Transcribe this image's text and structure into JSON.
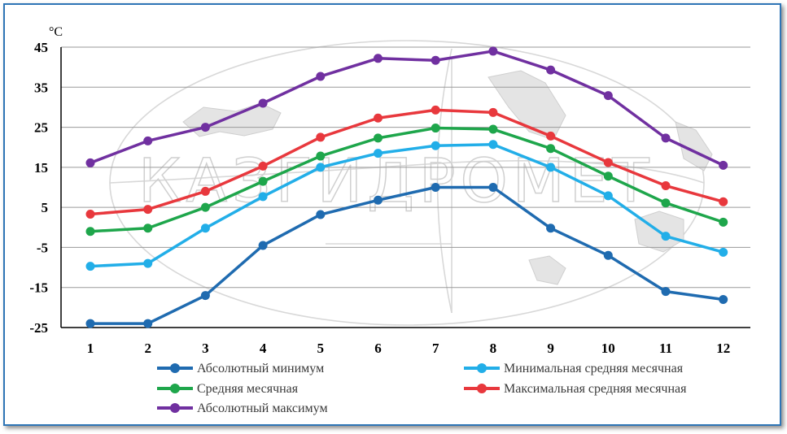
{
  "chart_data": {
    "type": "line",
    "unit_label": "°C",
    "categories": [
      "1",
      "2",
      "3",
      "4",
      "5",
      "6",
      "7",
      "8",
      "9",
      "10",
      "11",
      "12"
    ],
    "ylim": [
      -25,
      45
    ],
    "yticks": [
      "45",
      "35",
      "25",
      "15",
      "5",
      "-5",
      "-15",
      "-25"
    ],
    "watermark": "КАЗГИДРОМЕТ",
    "series": [
      {
        "name": "Абсолютный минимум",
        "color": "#1f6bb0",
        "values": [
          -24,
          -24,
          -17,
          -4.5,
          3.2,
          6.8,
          10,
          10,
          -0.2,
          -7,
          -16,
          -18
        ]
      },
      {
        "name": "Минимальная средняя месячная",
        "color": "#22aee8",
        "values": [
          -9.7,
          -9,
          -0.2,
          7.7,
          15,
          18.5,
          20.4,
          20.7,
          15,
          7.9,
          -2.2,
          -6.2
        ]
      },
      {
        "name": "Средняя месячная",
        "color": "#1ea64b",
        "values": [
          -1,
          -0.2,
          5,
          11.5,
          17.8,
          22.3,
          24.8,
          24.5,
          19.7,
          12.8,
          6.1,
          1.3
        ]
      },
      {
        "name": "Максимальная средняя месячная",
        "color": "#e8383d",
        "values": [
          3.3,
          4.5,
          9,
          15.3,
          22.5,
          27.3,
          29.3,
          28.7,
          22.8,
          16.2,
          10.4,
          6.4
        ]
      },
      {
        "name": "Абсолютный максимум",
        "color": "#7030a0",
        "values": [
          16.1,
          21.6,
          25,
          31,
          37.7,
          42.2,
          41.7,
          44,
          39.3,
          32.9,
          22.3,
          15.5
        ]
      }
    ]
  }
}
